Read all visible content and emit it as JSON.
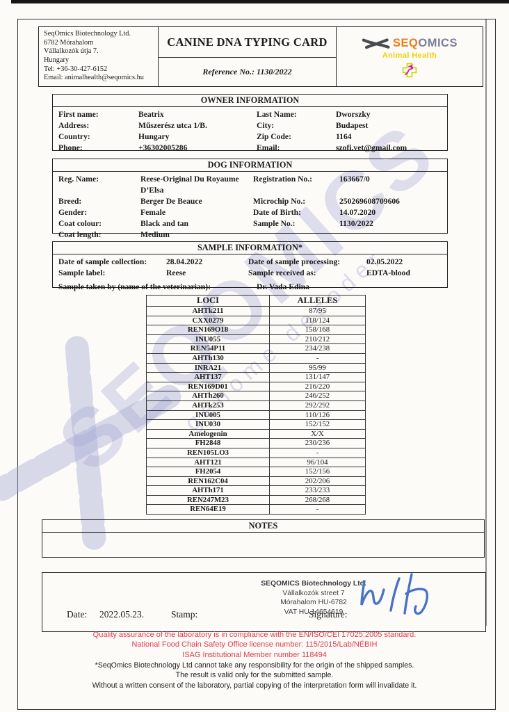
{
  "header": {
    "company_lines": [
      "SeqOmics Biotechnology Ltd.",
      "6782 Mórahalom",
      "Vállalkozók útja 7.",
      "Hungary",
      "Tel: +36-30-427-6152",
      "Email: animalhealth@seqomics.hu"
    ],
    "title": "CANINE DNA TYPING CARD",
    "reference": "Reference No.: 1130/2022",
    "logo": {
      "brand_seq": "SEQ",
      "brand_omics": "OMICS",
      "tagline": "Animal Health"
    }
  },
  "owner": {
    "title": "OWNER INFORMATION",
    "rows": [
      {
        "l1": "First name:",
        "v1": "Beatrix",
        "l2": "Last Name:",
        "v2": "Dworszky"
      },
      {
        "l1": "Address:",
        "v1": "Műszerész utca 1/B.",
        "l2": "City:",
        "v2": "Budapest"
      },
      {
        "l1": "Country:",
        "v1": "Hungary",
        "l2": "Zip Code:",
        "v2": "1164"
      },
      {
        "l1": "Phone:",
        "v1": "+36302005286",
        "l2": "Email:",
        "v2": "szofi.vet@gmail.com"
      }
    ]
  },
  "dog": {
    "title": "DOG INFORMATION",
    "rows": [
      {
        "l1": "Reg. Name:",
        "v1": "Reese-Original Du Royaume D’Elsa",
        "l2": "Registration No.:",
        "v2": "163667/0"
      },
      {
        "l1": "Breed:",
        "v1": "Berger De Beauce",
        "l2": "Microchip No.:",
        "v2": "250269608709606"
      },
      {
        "l1": "Gender:",
        "v1": "Female",
        "l2": "Date of Birth:",
        "v2": "14.07.2020"
      },
      {
        "l1": "Coat colour:",
        "v1": "Black and tan",
        "l2": "Sample No.:",
        "v2": "1130/2022"
      },
      {
        "l1": "Coat length:",
        "v1": "Medium",
        "l2": "",
        "v2": ""
      }
    ]
  },
  "sample": {
    "title": "SAMPLE INFORMATION*",
    "rows": [
      {
        "l1": "Date of sample collection:",
        "v1": "28.04.2022",
        "l2": "Date of sample processing:",
        "v2": "02.05.2022"
      },
      {
        "l1": "Sample label:",
        "v1": "Reese",
        "l2": "Sample received as:",
        "v2": "EDTA-blood"
      }
    ],
    "taken_by_label": "Sample taken by (name of the veterinarian):",
    "taken_by_value": "Dr. Vada Edina"
  },
  "alleles": {
    "col1": "LOCI",
    "col2": "ALLELES",
    "rows": [
      [
        "AHTk211",
        "87/95"
      ],
      [
        "CXX0279",
        "118/124"
      ],
      [
        "REN169O18",
        "158/168"
      ],
      [
        "INU055",
        "210/212"
      ],
      [
        "REN54P11",
        "234/238"
      ],
      [
        "AHTh130",
        "-"
      ],
      [
        "INRA21",
        "95/99"
      ],
      [
        "AHT137",
        "131/147"
      ],
      [
        "REN169D01",
        "216/220"
      ],
      [
        "AHTh260",
        "246/252"
      ],
      [
        "AHTk253",
        "292/292"
      ],
      [
        "INU005",
        "110/126"
      ],
      [
        "INU030",
        "152/152"
      ],
      [
        "Amelogenin",
        "X/X"
      ],
      [
        "FH2848",
        "230/236"
      ],
      [
        "REN105LO3",
        "-"
      ],
      [
        "AHT121",
        "96/104"
      ],
      [
        "FH2054",
        "152/156"
      ],
      [
        "REN162C04",
        "202/206"
      ],
      [
        "AHTh171",
        "233/233"
      ],
      [
        "REN247M23",
        "268/268"
      ],
      [
        "REN64E19",
        "-"
      ]
    ]
  },
  "notes": {
    "title": "NOTES"
  },
  "signoff": {
    "date_label": "Date:",
    "date_value": "2022.05.23.",
    "stamp_label": "Stamp:",
    "stamp_lines": [
      "SEQOMICS Biotechnology Ltd.",
      "Vállalkozók street 7",
      "Mórahalom  HU-6782",
      "VAT  HU 14654619"
    ],
    "signature_label": "Signature:"
  },
  "footer": {
    "red_lines": [
      "Quality assurance of the laboratory is in compliance with the EN/ISO/CEI 17025:2005 standard.",
      "National Food Chain Safety Office license number: 115/2015/Lab/NÉBIH",
      "ISAG Institutional Member number 118494"
    ],
    "black_lines": [
      "*SeqOmics Biotechnology Ltd cannot take any responsibility for the origin of the shipped samples.",
      "The result is valid only for the submitted sample.",
      "Without a written consent of the laboratory, partial copying of the interpretation form will invalidate it."
    ]
  },
  "watermark": {
    "text": "SEQOMICS",
    "subtext": "genome decoder"
  },
  "colors": {
    "accent_red": "#e23b50",
    "logo_orange": "#ef7a16",
    "logo_gray": "#7d7d9c",
    "logo_yellow": "#efd103",
    "icon_magenta": "#d4208c",
    "icon_yellowgreen": "#cfd400",
    "signature_blue": "#4a72c8",
    "watermark_lavender": "#acaed7"
  }
}
